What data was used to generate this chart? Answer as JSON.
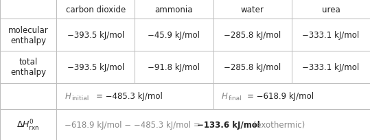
{
  "col_headers": [
    "carbon dioxide",
    "ammonia",
    "water",
    "urea"
  ],
  "row0": [
    "−393.5 kJ/mol",
    "−45.9 kJ/mol",
    "−285.8 kJ/mol",
    "−333.1 kJ/mol"
  ],
  "row1": [
    "−393.5 kJ/mol",
    "−91.8 kJ/mol",
    "−285.8 kJ/mol",
    "−333.1 kJ/mol"
  ],
  "h_initial": "−485.3 kJ/mol",
  "h_final": "−618.9 kJ/mol",
  "delta_result": "−133.6 kJ/mol",
  "delta_lhs": "−618.9 kJ/mol − −485.3 kJ/mol = ",
  "delta_suffix": " (exothermic)",
  "bg_color": "#ffffff",
  "line_color": "#bbbbbb",
  "text_color": "#222222",
  "gray_text": "#888888",
  "fontsize": 8.5,
  "small_fontsize": 6.5
}
